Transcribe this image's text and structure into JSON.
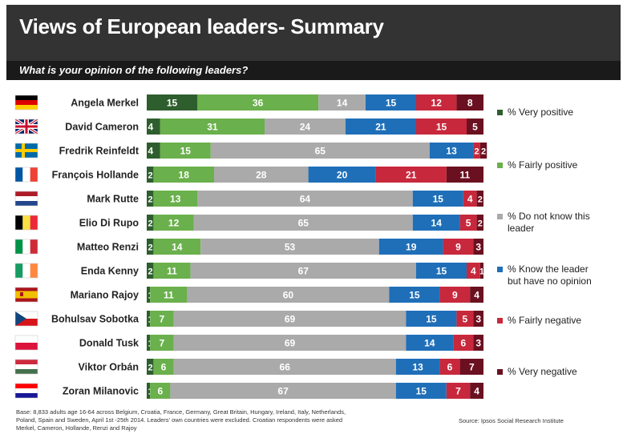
{
  "title": "Views of European leaders- Summary",
  "subtitle": "What is your opinion of the following leaders?",
  "footer": {
    "base": "Base: 8,833 adults age 16-64 across Belgium, Croatia, France, Germany, Great Britain, Hungary, Ireland, Italy, Netherlands, Poland, Spain and Sweden, April 1st -25th 2014. Leaders' own countries were excluded. Croatian respondents were asked Merkel, Cameron, Hollande, Renzi and Rajoy",
    "source": "Source: Ipsos Social Research Institute"
  },
  "chart_data": {
    "type": "bar",
    "orientation": "horizontal",
    "stacked": true,
    "grid": false,
    "legend": "right",
    "categories": [
      "Angela Merkel",
      "David Cameron",
      "Fredrik Reinfeldt",
      "François Hollande",
      "Mark Rutte",
      "Elio Di Rupo",
      "Matteo Renzi",
      "Enda Kenny",
      "Mariano Rajoy",
      "Bohulsav Sobotka",
      "Donald Tusk",
      "Viktor Orbán",
      "Zoran Milanovic"
    ],
    "flags": [
      "germany-flag-icon",
      "uk-flag-icon",
      "sweden-flag-icon",
      "france-flag-icon",
      "netherlands-flag-icon",
      "belgium-flag-icon",
      "italy-flag-icon",
      "ireland-flag-icon",
      "spain-flag-icon",
      "czech-flag-icon",
      "poland-flag-icon",
      "hungary-flag-icon",
      "croatia-flag-icon"
    ],
    "series": [
      {
        "name": "% Very positive",
        "color": "#2e5e2e",
        "values": [
          15,
          4,
          4,
          2,
          2,
          2,
          2,
          2,
          1,
          1,
          1,
          2,
          1
        ]
      },
      {
        "name": "% Fairly positive",
        "color": "#6ab04c",
        "values": [
          36,
          31,
          15,
          18,
          13,
          12,
          14,
          11,
          11,
          7,
          7,
          6,
          6
        ]
      },
      {
        "name": "% Do not know this leader",
        "color": "#aaaaaa",
        "values": [
          14,
          24,
          65,
          28,
          64,
          65,
          53,
          67,
          60,
          69,
          69,
          66,
          67
        ]
      },
      {
        "name": "% Know the leader but have no opinion",
        "color": "#1f6fb8",
        "values": [
          15,
          21,
          13,
          20,
          15,
          14,
          19,
          15,
          15,
          15,
          14,
          13,
          15
        ]
      },
      {
        "name": "% Fairly negative",
        "color": "#c8283c",
        "values": [
          12,
          15,
          2,
          21,
          4,
          5,
          9,
          4,
          9,
          5,
          6,
          6,
          7
        ]
      },
      {
        "name": "% Very negative",
        "color": "#6b1020",
        "values": [
          8,
          5,
          2,
          11,
          2,
          2,
          3,
          1,
          4,
          3,
          3,
          7,
          4
        ]
      }
    ],
    "xlim": [
      0,
      100
    ]
  }
}
